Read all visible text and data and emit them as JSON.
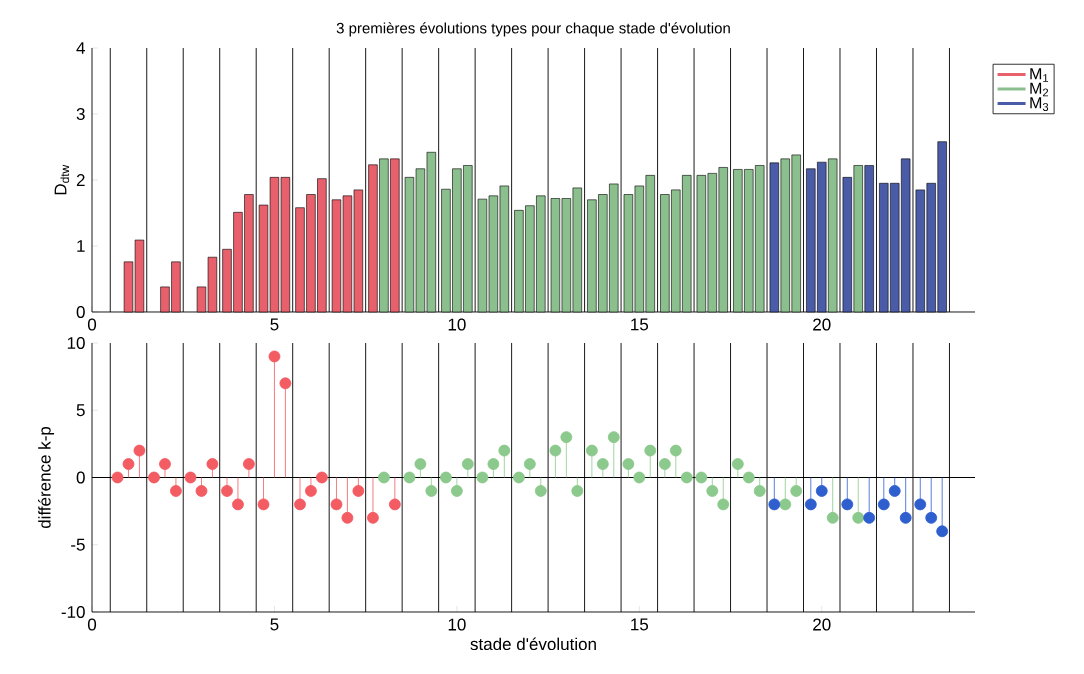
{
  "chart_data": [
    {
      "type": "bar",
      "title": "3 premières évolutions types pour chaque stade d'évolution",
      "ylabel": "D$_{dtw}$",
      "xlim": [
        0,
        24.2
      ],
      "xticks": [
        0,
        5,
        10,
        15,
        20
      ],
      "ylim": [
        0,
        4
      ],
      "yticks": [
        0,
        1,
        2,
        3,
        4
      ],
      "legend": "top right",
      "series": [
        {
          "name": "M$_{1}$",
          "color": "#e8606c",
          "x": [
            1,
            1.3,
            2,
            2.3,
            3,
            3.3,
            3.7,
            4,
            4.3,
            4.7,
            5,
            5.3,
            5.7,
            6,
            6.3,
            6.7,
            7,
            7.3,
            7.7,
            8.3
          ],
          "values": [
            0.76,
            1.09,
            0.38,
            0.76,
            0.38,
            0.83,
            0.95,
            1.51,
            1.78,
            1.62,
            2.04,
            2.04,
            1.58,
            1.78,
            2.02,
            1.7,
            1.76,
            1.85,
            2.23,
            2.32
          ]
        },
        {
          "name": "M$_{2}$",
          "color": "#8cbf8e",
          "x": [
            8,
            8.7,
            9,
            9.3,
            9.7,
            10,
            10.3,
            10.7,
            11,
            11.3,
            11.7,
            12,
            12.3,
            12.7,
            13,
            13.3,
            13.7,
            14,
            14.3,
            14.7,
            15,
            15.3,
            15.7,
            16,
            16.3,
            16.7,
            17,
            17.3,
            17.7,
            18,
            18.3,
            19,
            19.3,
            20.3,
            21
          ],
          "values": [
            2.32,
            2.04,
            2.17,
            2.42,
            1.86,
            2.17,
            2.22,
            1.71,
            1.76,
            1.91,
            1.54,
            1.61,
            1.76,
            1.72,
            1.72,
            1.88,
            1.7,
            1.78,
            1.94,
            1.78,
            1.91,
            2.07,
            1.78,
            1.85,
            2.07,
            2.07,
            2.1,
            2.19,
            2.16,
            2.16,
            2.22,
            2.32,
            2.38,
            2.32,
            2.22
          ]
        },
        {
          "name": "M$_{3}$",
          "color": "#4a5ca8",
          "x": [
            18.7,
            19.7,
            20,
            20.7,
            21.3,
            21.7,
            22,
            22.3,
            22.7,
            23,
            23.3
          ],
          "values": [
            2.26,
            2.17,
            2.27,
            2.04,
            2.22,
            1.95,
            1.95,
            2.32,
            1.85,
            1.95,
            2.58
          ]
        }
      ],
      "ref_lines": [
        {
          "axis": "x",
          "value": 0.5
        },
        {
          "axis": "x",
          "value": 1.5
        },
        {
          "axis": "x",
          "value": 2.5
        },
        {
          "axis": "x",
          "value": 3.5
        },
        {
          "axis": "x",
          "value": 4.5
        },
        {
          "axis": "x",
          "value": 5.5
        },
        {
          "axis": "x",
          "value": 6.5
        },
        {
          "axis": "x",
          "value": 7.5
        },
        {
          "axis": "x",
          "value": 8.5
        },
        {
          "axis": "x",
          "value": 9.5
        },
        {
          "axis": "x",
          "value": 10.5
        },
        {
          "axis": "x",
          "value": 11.5
        },
        {
          "axis": "x",
          "value": 12.5
        },
        {
          "axis": "x",
          "value": 13.5
        },
        {
          "axis": "x",
          "value": 14.5
        },
        {
          "axis": "x",
          "value": 15.5
        },
        {
          "axis": "x",
          "value": 16.5
        },
        {
          "axis": "x",
          "value": 17.5
        },
        {
          "axis": "x",
          "value": 18.5
        },
        {
          "axis": "x",
          "value": 19.5
        },
        {
          "axis": "x",
          "value": 20.5
        },
        {
          "axis": "x",
          "value": 21.5
        },
        {
          "axis": "x",
          "value": 22.5
        },
        {
          "axis": "x",
          "value": 23.5
        }
      ]
    },
    {
      "type": "lollipop",
      "xlabel": "stade d'évolution",
      "ylabel": "différence k-p",
      "marker": "circle",
      "xlim": [
        0,
        24.2
      ],
      "xticks": [
        0,
        5,
        10,
        15,
        20
      ],
      "ylim": [
        -10,
        10
      ],
      "yticks": [
        -10,
        -5,
        0,
        5,
        10
      ],
      "series": [
        {
          "color": "#f25c62",
          "x": [
            0.7,
            1,
            1.3,
            1.7,
            2,
            2.3,
            2.7,
            3,
            3.3,
            3.7,
            4,
            4.3,
            4.7,
            5,
            5.3,
            5.7,
            6,
            6.3,
            6.7,
            7,
            7.3,
            7.7,
            8.3
          ],
          "values": [
            0,
            1,
            2,
            0,
            1,
            -1,
            0,
            -1,
            1,
            -1,
            -2,
            1,
            -2,
            9,
            7,
            -2,
            -1,
            0,
            -2,
            -3,
            -1,
            -3,
            -2
          ]
        },
        {
          "color": "#8cc98c",
          "x": [
            8,
            8.7,
            9,
            9.3,
            9.7,
            10,
            10.3,
            10.7,
            11,
            11.3,
            11.7,
            12,
            12.3,
            12.7,
            13,
            13.3,
            13.7,
            14,
            14.3,
            14.7,
            15,
            15.3,
            15.7,
            16,
            16.3,
            16.7,
            17,
            17.3,
            17.7,
            18,
            18.3,
            19,
            19.3,
            20.3,
            21
          ],
          "values": [
            0,
            0,
            1,
            -1,
            0,
            -1,
            1,
            0,
            1,
            2,
            0,
            1,
            -1,
            2,
            3,
            -1,
            2,
            1,
            3,
            1,
            0,
            2,
            1,
            2,
            0,
            0,
            -1,
            -2,
            1,
            0,
            -1,
            -2,
            -1,
            -3,
            -3
          ]
        },
        {
          "color": "#2f5fcf",
          "x": [
            18.7,
            19.7,
            20,
            20.7,
            21.3,
            21.7,
            22,
            22.3,
            22.7,
            23,
            23.3
          ],
          "values": [
            -2,
            -2,
            -1,
            -2,
            -3,
            -2,
            -1,
            -3,
            -2,
            -3,
            -4
          ]
        }
      ],
      "ref_lines": [
        {
          "axis": "y",
          "value": 0
        },
        {
          "axis": "x",
          "value": 0.5
        },
        {
          "axis": "x",
          "value": 1.5
        },
        {
          "axis": "x",
          "value": 2.5
        },
        {
          "axis": "x",
          "value": 3.5
        },
        {
          "axis": "x",
          "value": 4.5
        },
        {
          "axis": "x",
          "value": 5.5
        },
        {
          "axis": "x",
          "value": 6.5
        },
        {
          "axis": "x",
          "value": 7.5
        },
        {
          "axis": "x",
          "value": 8.5
        },
        {
          "axis": "x",
          "value": 9.5
        },
        {
          "axis": "x",
          "value": 10.5
        },
        {
          "axis": "x",
          "value": 11.5
        },
        {
          "axis": "x",
          "value": 12.5
        },
        {
          "axis": "x",
          "value": 13.5
        },
        {
          "axis": "x",
          "value": 14.5
        },
        {
          "axis": "x",
          "value": 15.5
        },
        {
          "axis": "x",
          "value": 16.5
        },
        {
          "axis": "x",
          "value": 17.5
        },
        {
          "axis": "x",
          "value": 18.5
        },
        {
          "axis": "x",
          "value": 19.5
        },
        {
          "axis": "x",
          "value": 20.5
        },
        {
          "axis": "x",
          "value": 21.5
        },
        {
          "axis": "x",
          "value": 22.5
        },
        {
          "axis": "x",
          "value": 23.5
        }
      ]
    }
  ]
}
